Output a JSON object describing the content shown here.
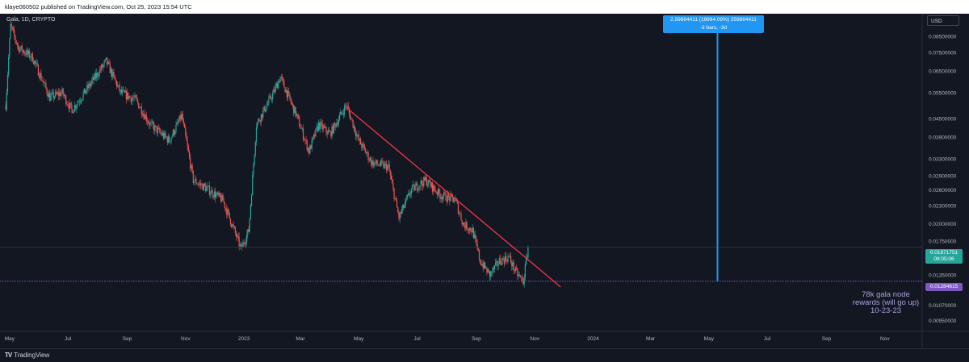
{
  "header": {
    "published": "klaye060502 published on TradingView.com, Oct 25, 2023 15:54 UTC"
  },
  "footer": {
    "logo_text": "TradingView",
    "logo_icon": "tradingview-logo-icon"
  },
  "symbol_label": "Gala, 1D, CRYPTO",
  "currency": "USD",
  "measurement": {
    "line1": "2.59864411 (19994.09%) 259864411",
    "line2": "-3 bars, -3d"
  },
  "price_tag_current": {
    "price": "0.01671751",
    "countdown": "08:05:06",
    "color": "#26a69a"
  },
  "price_tag_hline": {
    "price": "0.01284615",
    "color": "#7e57c2"
  },
  "annotation": {
    "line1": "78k gala node",
    "line2": "rewards (will go up)",
    "line3": "10-23-23"
  },
  "colors": {
    "background": "#131722",
    "up": "#26a69a",
    "down": "#ef5350",
    "trendline": "#f23645",
    "hline": "#7e57c2",
    "measure": "#2196f3",
    "axis_text": "#b2b5be"
  },
  "chart_data": {
    "type": "candlestick",
    "title": "Gala, 1D, CRYPTO",
    "y_scale": "log",
    "ylim": [
      0.0089,
      0.101
    ],
    "y_ticks": [
      "0.08500000",
      "0.07500000",
      "0.06500000",
      "0.05500000",
      "0.04500000",
      "0.03900000",
      "0.03300000",
      "0.02900000",
      "0.02600000",
      "0.02300000",
      "0.02000000",
      "0.01750000",
      "0.01350000",
      "0.01210000",
      "0.01070000",
      "0.00950000"
    ],
    "x_ticks": [
      "May",
      "Jul",
      "Sep",
      "Nov",
      "2023",
      "Mar",
      "May",
      "Jul",
      "Sep",
      "Nov",
      "2024",
      "Mar",
      "May",
      "Jul",
      "Sep",
      "Nov"
    ],
    "x_tick_dates": [
      "2022-05-01",
      "2022-07-01",
      "2022-09-01",
      "2022-11-01",
      "2023-01-01",
      "2023-03-01",
      "2023-05-01",
      "2023-07-01",
      "2023-09-01",
      "2023-11-01",
      "2024-01-01",
      "2024-03-01",
      "2024-05-01",
      "2024-07-01",
      "2024-09-01",
      "2024-11-01"
    ],
    "price_path": [
      {
        "date": "2022-04-27",
        "price": 0.05
      },
      {
        "date": "2022-05-02",
        "price": 0.092
      },
      {
        "date": "2022-05-10",
        "price": 0.078
      },
      {
        "date": "2022-05-25",
        "price": 0.072
      },
      {
        "date": "2022-06-12",
        "price": 0.053
      },
      {
        "date": "2022-06-25",
        "price": 0.055
      },
      {
        "date": "2022-07-05",
        "price": 0.048
      },
      {
        "date": "2022-07-20",
        "price": 0.056
      },
      {
        "date": "2022-08-10",
        "price": 0.07
      },
      {
        "date": "2022-08-25",
        "price": 0.055
      },
      {
        "date": "2022-09-10",
        "price": 0.052
      },
      {
        "date": "2022-09-25",
        "price": 0.043
      },
      {
        "date": "2022-10-15",
        "price": 0.038
      },
      {
        "date": "2022-10-28",
        "price": 0.046
      },
      {
        "date": "2022-11-09",
        "price": 0.028
      },
      {
        "date": "2022-11-25",
        "price": 0.026
      },
      {
        "date": "2022-12-10",
        "price": 0.024
      },
      {
        "date": "2022-12-29",
        "price": 0.0165
      },
      {
        "date": "2023-01-06",
        "price": 0.019
      },
      {
        "date": "2023-01-14",
        "price": 0.043
      },
      {
        "date": "2023-02-01",
        "price": 0.055
      },
      {
        "date": "2023-02-08",
        "price": 0.062
      },
      {
        "date": "2023-02-25",
        "price": 0.046
      },
      {
        "date": "2023-03-10",
        "price": 0.035
      },
      {
        "date": "2023-03-20",
        "price": 0.043
      },
      {
        "date": "2023-04-01",
        "price": 0.04
      },
      {
        "date": "2023-04-18",
        "price": 0.05
      },
      {
        "date": "2023-05-01",
        "price": 0.038
      },
      {
        "date": "2023-05-15",
        "price": 0.032
      },
      {
        "date": "2023-06-01",
        "price": 0.031
      },
      {
        "date": "2023-06-12",
        "price": 0.021
      },
      {
        "date": "2023-06-25",
        "price": 0.026
      },
      {
        "date": "2023-07-10",
        "price": 0.028
      },
      {
        "date": "2023-07-25",
        "price": 0.025
      },
      {
        "date": "2023-08-10",
        "price": 0.024
      },
      {
        "date": "2023-08-18",
        "price": 0.02
      },
      {
        "date": "2023-08-28",
        "price": 0.019
      },
      {
        "date": "2023-09-05",
        "price": 0.015
      },
      {
        "date": "2023-09-15",
        "price": 0.0135
      },
      {
        "date": "2023-09-25",
        "price": 0.015
      },
      {
        "date": "2023-10-05",
        "price": 0.0155
      },
      {
        "date": "2023-10-12",
        "price": 0.0138
      },
      {
        "date": "2023-10-20",
        "price": 0.0128
      },
      {
        "date": "2023-10-25",
        "price": 0.01671751
      }
    ],
    "trendline": {
      "start": {
        "date": "2023-04-18",
        "price": 0.049
      },
      "end": {
        "date": "2023-11-28",
        "price": 0.0123
      }
    },
    "horizontal_line": {
      "price": 0.01284615
    },
    "vertical_marker": {
      "date": "2024-05-10",
      "price_from": 0.01284615,
      "price_to": 0.101
    },
    "current_price_line": {
      "price": 0.01671751
    }
  }
}
